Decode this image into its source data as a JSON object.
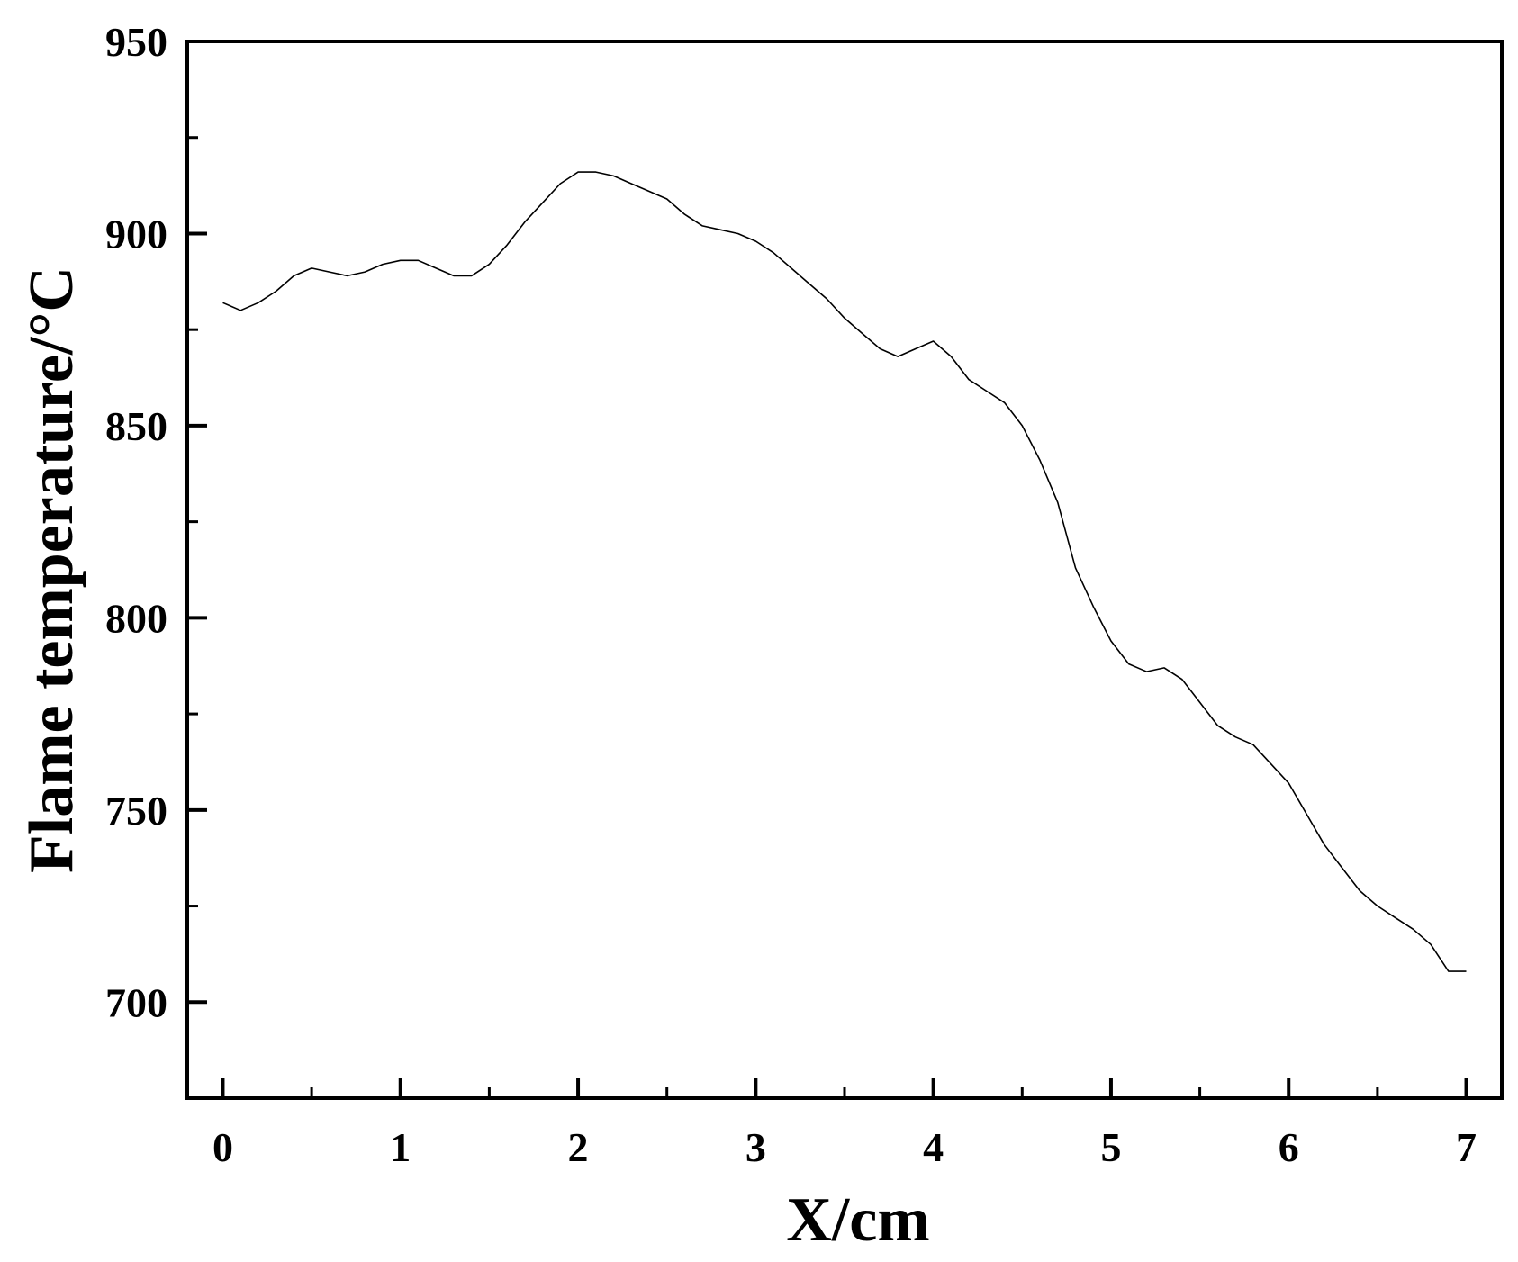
{
  "chart_data": {
    "type": "line",
    "title": "",
    "xlabel": "X/cm",
    "ylabel": "Flame temperature/°C",
    "xlim": [
      -0.2,
      7.2
    ],
    "ylim": [
      675,
      950
    ],
    "x_ticks": [
      0,
      1,
      2,
      3,
      4,
      5,
      6,
      7
    ],
    "x_tick_labels": [
      "0",
      "1",
      "2",
      "3",
      "4",
      "5",
      "6",
      "7"
    ],
    "y_ticks": [
      700,
      750,
      800,
      850,
      900,
      950
    ],
    "y_tick_labels": [
      "700",
      "750",
      "800",
      "850",
      "900",
      "950"
    ],
    "x_minor_ticks": [
      0.5,
      1.5,
      2.5,
      3.5,
      4.5,
      5.5,
      6.5
    ],
    "y_minor_ticks": [
      725,
      775,
      825,
      875,
      925
    ],
    "grid": false,
    "legend": "none",
    "line_color": "#000000",
    "series": [
      {
        "x": [
          0,
          0.1,
          0.2,
          0.3,
          0.4,
          0.5,
          0.6,
          0.7,
          0.8,
          0.9,
          1.0,
          1.1,
          1.2,
          1.3,
          1.4,
          1.5,
          1.6,
          1.7,
          1.8,
          1.9,
          2.0,
          2.1,
          2.2,
          2.3,
          2.4,
          2.5,
          2.6,
          2.7,
          2.8,
          2.9,
          3.0,
          3.1,
          3.2,
          3.3,
          3.4,
          3.5,
          3.6,
          3.7,
          3.8,
          3.9,
          4.0,
          4.1,
          4.2,
          4.3,
          4.4,
          4.5,
          4.6,
          4.7,
          4.8,
          4.9,
          5.0,
          5.1,
          5.2,
          5.3,
          5.4,
          5.5,
          5.6,
          5.7,
          5.8,
          5.9,
          6.0,
          6.1,
          6.2,
          6.3,
          6.4,
          6.5,
          6.6,
          6.7,
          6.8,
          6.9,
          7.0
        ],
        "values": [
          882,
          880,
          882,
          885,
          889,
          891,
          890,
          889,
          890,
          892,
          893,
          893,
          891,
          889,
          889,
          892,
          897,
          903,
          908,
          913,
          916,
          916,
          915,
          913,
          911,
          909,
          905,
          902,
          901,
          900,
          898,
          895,
          891,
          887,
          883,
          878,
          874,
          870,
          868,
          870,
          872,
          868,
          862,
          859,
          856,
          850,
          841,
          830,
          813,
          803,
          794,
          788,
          786,
          787,
          784,
          778,
          772,
          769,
          767,
          762,
          757,
          749,
          741,
          735,
          729,
          725,
          722,
          719,
          715,
          708,
          708
        ]
      }
    ]
  }
}
